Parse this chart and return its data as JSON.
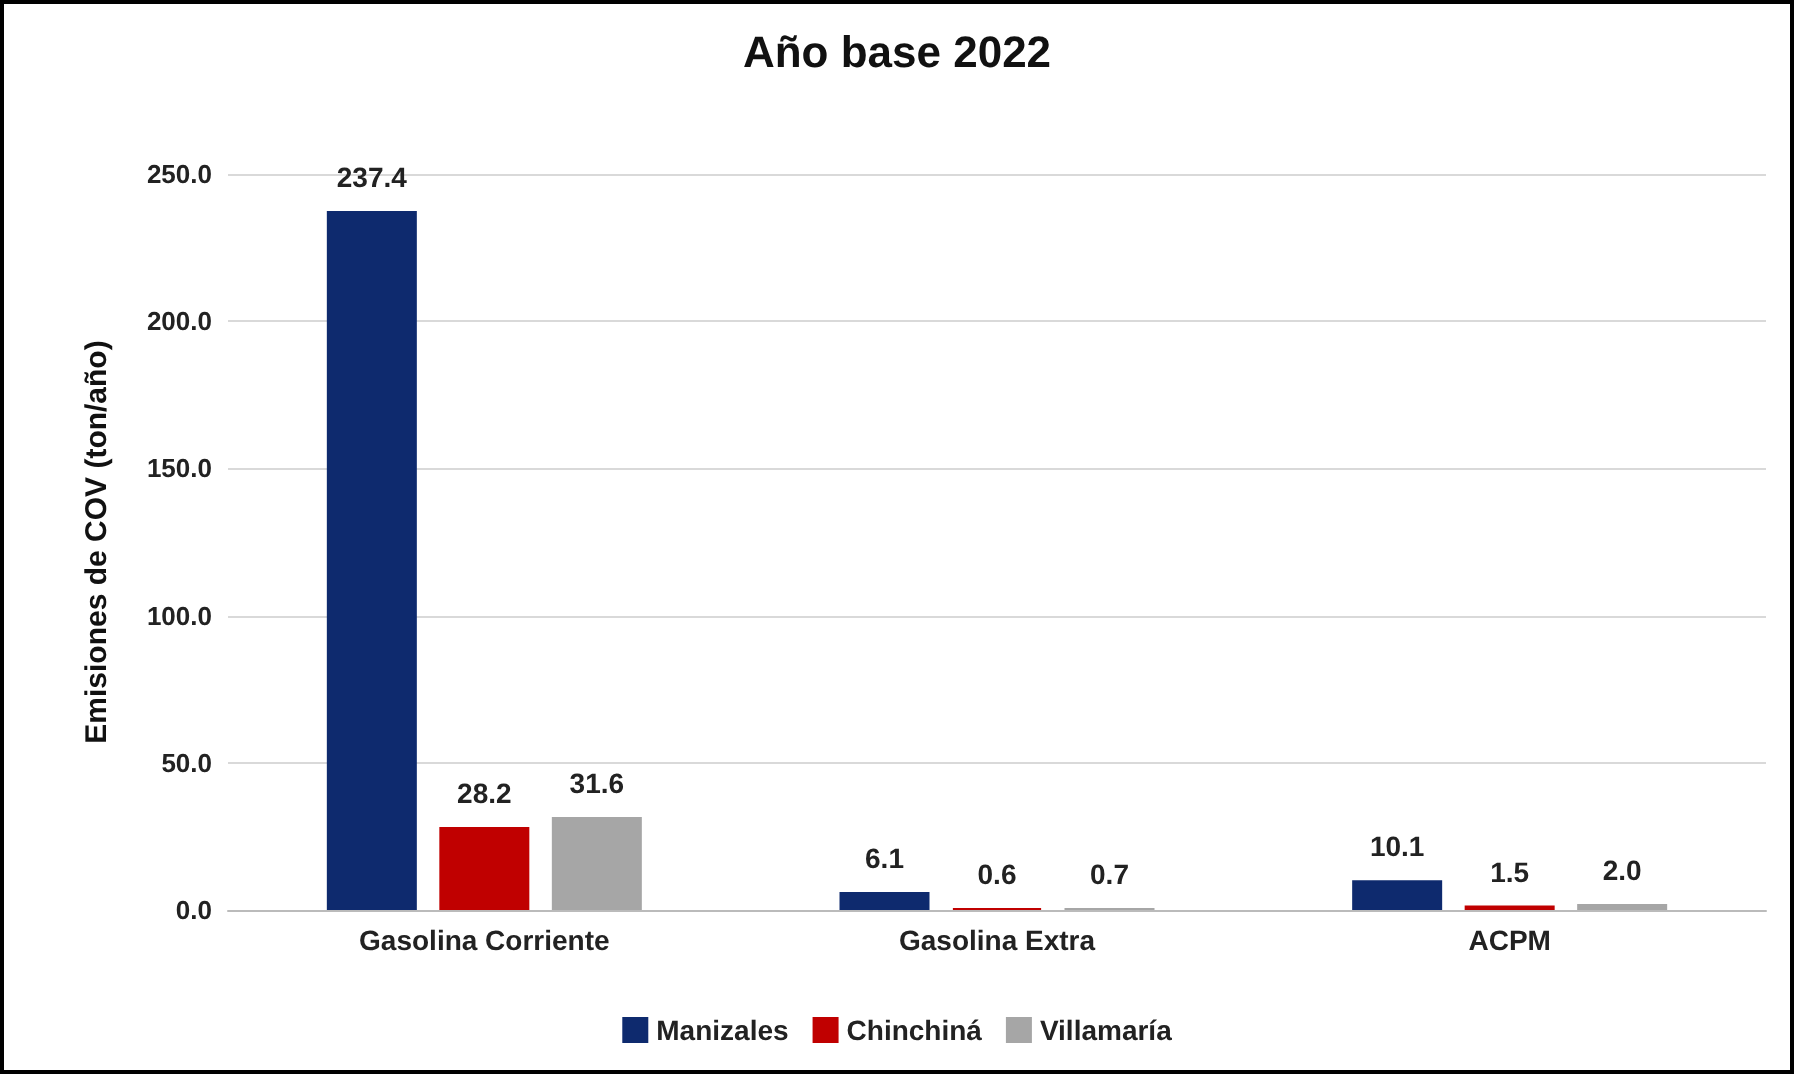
{
  "chart_data": {
    "type": "bar",
    "title": "Año base 2022",
    "ylabel": "Emisiones de COV (ton/año)",
    "categories": [
      "Gasolina Corriente",
      "Gasolina Extra",
      "ACPM"
    ],
    "series": [
      {
        "name": "Manizales",
        "color": "#0e2a6e",
        "values": [
          237.4,
          6.1,
          10.1
        ],
        "value_labels": [
          "237.4",
          "6.1",
          "10.1"
        ]
      },
      {
        "name": "Chinchiná",
        "color": "#c00000",
        "values": [
          28.2,
          0.6,
          1.5
        ],
        "value_labels": [
          "28.2",
          "0.6",
          "1.5"
        ]
      },
      {
        "name": "Villamaría",
        "color": "#a6a6a6",
        "values": [
          31.6,
          0.7,
          2.0
        ],
        "value_labels": [
          "31.6",
          "0.7",
          "2.0"
        ]
      }
    ],
    "ylim": [
      0,
      250
    ],
    "yticks": [
      {
        "value": 0,
        "label": "0.0"
      },
      {
        "value": 50,
        "label": "50.0"
      },
      {
        "value": 100,
        "label": "100.0"
      },
      {
        "value": 150,
        "label": "150.0"
      },
      {
        "value": 200,
        "label": "200.0"
      },
      {
        "value": 250,
        "label": "250.0"
      }
    ],
    "grid": "y",
    "legend": "bottom"
  }
}
